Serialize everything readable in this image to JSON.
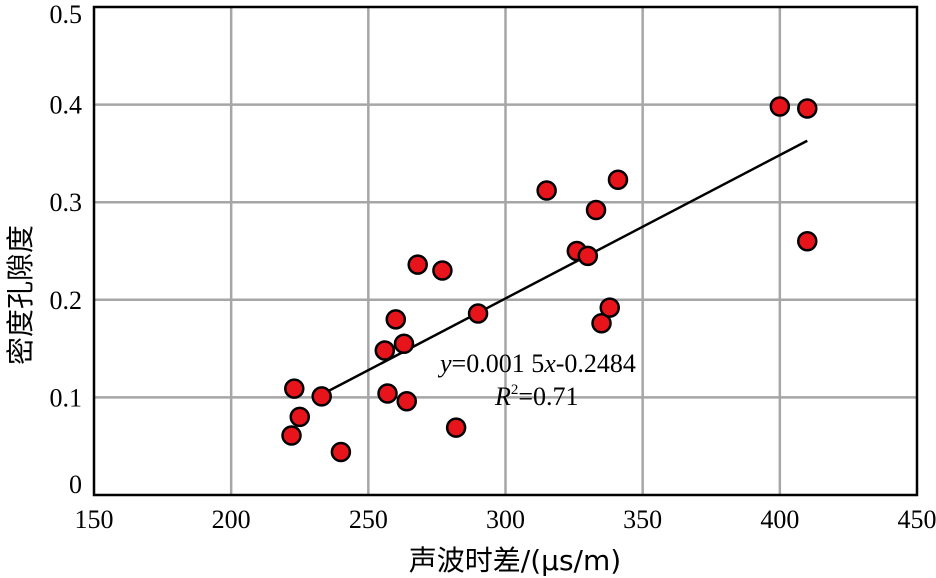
{
  "chart_data": {
    "type": "scatter",
    "xlabel": "声波时差/(μs/m)",
    "ylabel": "密度孔隙度",
    "xlim": [
      150,
      450
    ],
    "ylim": [
      0,
      0.5
    ],
    "xticks": [
      150,
      200,
      250,
      300,
      350,
      400,
      450
    ],
    "yticks": [
      0,
      0.1,
      0.2,
      0.3,
      0.4,
      0.5
    ],
    "x_tick_labels": [
      "150",
      "200",
      "250",
      "300",
      "350",
      "400",
      "450"
    ],
    "y_tick_labels": [
      "0",
      "0.1",
      "0.2",
      "0.3",
      "0.4",
      "0.5"
    ],
    "grid": true,
    "marker_color": "#e8141b",
    "line_color": "#000000",
    "points": [
      {
        "x": 222,
        "y": 0.061
      },
      {
        "x": 223,
        "y": 0.109
      },
      {
        "x": 225,
        "y": 0.08
      },
      {
        "x": 233,
        "y": 0.101
      },
      {
        "x": 240,
        "y": 0.044
      },
      {
        "x": 256,
        "y": 0.148
      },
      {
        "x": 257,
        "y": 0.104
      },
      {
        "x": 260,
        "y": 0.18
      },
      {
        "x": 263,
        "y": 0.155
      },
      {
        "x": 264,
        "y": 0.096
      },
      {
        "x": 268,
        "y": 0.236
      },
      {
        "x": 277,
        "y": 0.23
      },
      {
        "x": 282,
        "y": 0.069
      },
      {
        "x": 290,
        "y": 0.186
      },
      {
        "x": 315,
        "y": 0.312
      },
      {
        "x": 326,
        "y": 0.25
      },
      {
        "x": 330,
        "y": 0.245
      },
      {
        "x": 333,
        "y": 0.292
      },
      {
        "x": 335,
        "y": 0.176
      },
      {
        "x": 338,
        "y": 0.192
      },
      {
        "x": 341,
        "y": 0.323
      },
      {
        "x": 400,
        "y": 0.398
      },
      {
        "x": 410,
        "y": 0.396
      },
      {
        "x": 410,
        "y": 0.26
      }
    ],
    "fit_line": {
      "x": [
        231,
        410
      ],
      "y": [
        0.1,
        0.363
      ]
    },
    "equation": {
      "y_var": "y",
      "equals_coeff": "=0.001 5",
      "x_var": "x",
      "intercept": "-0.2484",
      "r_var": "R",
      "r_exp": "2",
      "r_value": "=0.71"
    }
  }
}
